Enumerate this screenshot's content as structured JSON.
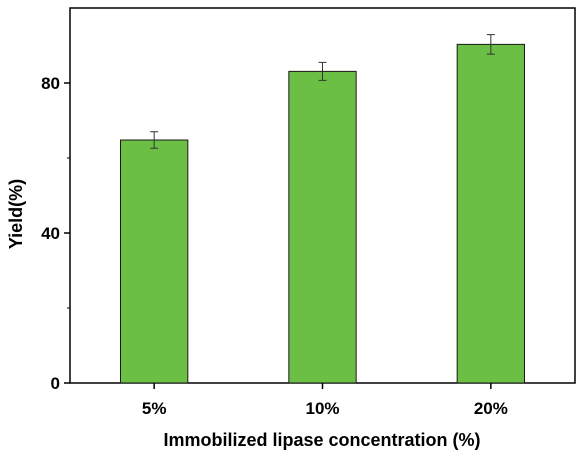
{
  "chart_data": {
    "type": "bar",
    "categories": [
      "5%",
      "10%",
      "20%"
    ],
    "values": [
      64.8,
      83.1,
      90.3
    ],
    "errors": [
      2.2,
      2.4,
      2.6
    ],
    "xlabel": "Immobilized lipase concentration (%)",
    "ylabel": "Yield(%)",
    "ylim": [
      0,
      100
    ],
    "yticks": [
      0,
      40,
      80
    ],
    "bar_color": "#6cbf45",
    "bar_edge_color": "#1a1a1a",
    "grid": false,
    "legend": "none"
  }
}
